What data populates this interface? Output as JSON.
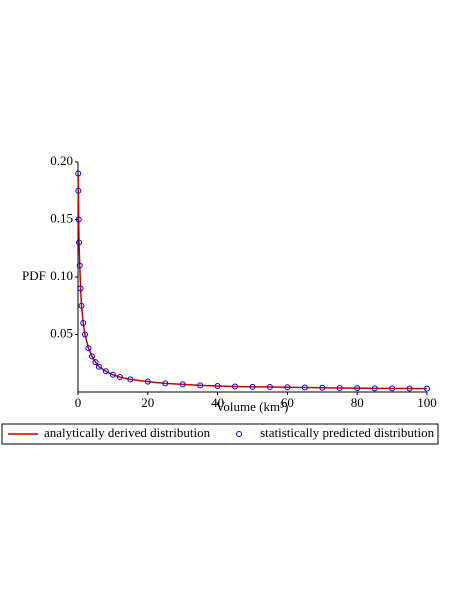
{
  "chart_data": {
    "type": "line-scatter",
    "x_label": "Volume (km³)",
    "y_label": "PDF",
    "xlim": [
      0,
      100
    ],
    "ylim": [
      0,
      0.2
    ],
    "xticks": [
      0,
      20,
      40,
      60,
      80,
      100
    ],
    "yticks": [
      0.05,
      {
        "value": 0.1,
        "label": "0.10"
      },
      0.15,
      {
        "value": 0.2,
        "label": "0.20"
      }
    ],
    "legend": "bottom",
    "series": [
      {
        "name": "analytically derived distribution",
        "kind": "line",
        "color": "#cc0000",
        "x": [
          0.05,
          0.1,
          0.2,
          0.3,
          0.5,
          0.75,
          1,
          1.5,
          2,
          3,
          4,
          5,
          6,
          8,
          10,
          12,
          15,
          20,
          25,
          30,
          35,
          40,
          45,
          50,
          55,
          60,
          65,
          70,
          75,
          80,
          85,
          90,
          95,
          100
        ],
        "values": [
          0.19,
          0.175,
          0.15,
          0.13,
          0.11,
          0.09,
          0.075,
          0.06,
          0.05,
          0.038,
          0.031,
          0.026,
          0.022,
          0.018,
          0.015,
          0.013,
          0.011,
          0.009,
          0.0075,
          0.0066,
          0.0058,
          0.0052,
          0.0048,
          0.0045,
          0.0043,
          0.0041,
          0.0039,
          0.0037,
          0.0035,
          0.0034,
          0.0032,
          0.0031,
          0.003,
          0.0029
        ]
      },
      {
        "name": "statistically predicted distribution",
        "kind": "scatter",
        "color": "#0000ee",
        "x": [
          0.05,
          0.1,
          0.2,
          0.3,
          0.5,
          0.75,
          1,
          1.5,
          2,
          3,
          4,
          5,
          6,
          8,
          10,
          12,
          15,
          20,
          25,
          30,
          35,
          40,
          45,
          50,
          55,
          60,
          65,
          70,
          75,
          80,
          85,
          90,
          95,
          100
        ],
        "values": [
          0.19,
          0.175,
          0.15,
          0.13,
          0.11,
          0.09,
          0.075,
          0.06,
          0.05,
          0.038,
          0.031,
          0.026,
          0.022,
          0.018,
          0.015,
          0.013,
          0.011,
          0.009,
          0.0075,
          0.0066,
          0.0058,
          0.0052,
          0.0048,
          0.0045,
          0.0043,
          0.0041,
          0.0039,
          0.0037,
          0.0035,
          0.0034,
          0.0032,
          0.0031,
          0.003,
          0.0029
        ]
      }
    ]
  }
}
